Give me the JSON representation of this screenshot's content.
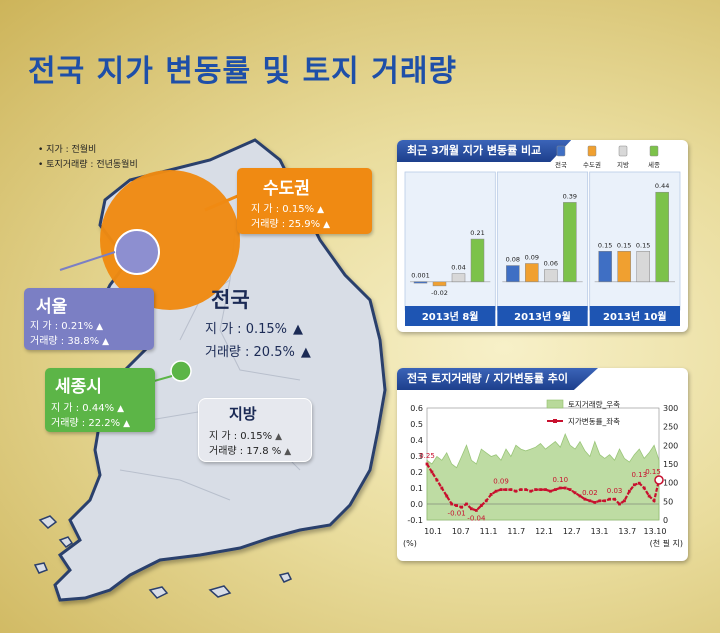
{
  "title": "전국 지가 변동률 및 토지 거래량",
  "notes": [
    "• 지가 : 전월비",
    "• 토지거래량 : 전년동월비"
  ],
  "regions": {
    "capital": {
      "name": "수도권",
      "line1": "지   가 : 0.15%",
      "line2": "거래량 : 25.9%",
      "color": "#f08a12"
    },
    "seoul": {
      "name": "서울",
      "line1": "지   가 : 0.21%",
      "line2": "거래량 : 38.8%",
      "color": "#7b7fc4"
    },
    "sejong": {
      "name": "세종시",
      "line1": "지   가 : 0.44%",
      "line2": "거래량 : 22.2%",
      "color": "#5cb547"
    },
    "local": {
      "name": "지방",
      "line1": "지   가 : 0.15%",
      "line2": "거래량 : 17.8 %"
    },
    "national": {
      "name": "전국",
      "line1": "지   가 : 0.15%",
      "line2": "거래량 : 20.5%"
    }
  },
  "arrow_glyph": "▲",
  "chart_data": [
    {
      "type": "bar",
      "title": "최근 3개월 지가 변동률 비교",
      "series_names": [
        "전국",
        "수도권",
        "지방",
        "세종"
      ],
      "colors": [
        "#3f6fc4",
        "#f0a030",
        "#d8d8d8",
        "#7cc24a"
      ],
      "categories": [
        "2013년 8월",
        "2013년 9월",
        "2013년 10월"
      ],
      "values": [
        [
          0.001,
          -0.02,
          0.04,
          0.21
        ],
        [
          0.08,
          0.09,
          0.06,
          0.39
        ],
        [
          0.15,
          0.15,
          0.15,
          0.44
        ]
      ],
      "labels": [
        [
          "0.001",
          "-0.02",
          "0.04",
          "0.21"
        ],
        [
          "0.08",
          "0.09",
          "0.06",
          "0.39"
        ],
        [
          "0.15",
          "0.15",
          "0.15",
          "0.44"
        ]
      ],
      "ylim": [
        -0.05,
        0.5
      ]
    },
    {
      "type": "line",
      "title": "전국 토지거래량 / 지가변동률 추이",
      "legend": [
        "토지거래량_우축",
        "지가변동률_좌축"
      ],
      "x_ticks": [
        "10.1",
        "10.7",
        "11.1",
        "11.7",
        "12.1",
        "12.7",
        "13.1",
        "13.7",
        "13.10"
      ],
      "left_axis": {
        "ticks": [
          "0.6",
          "0.5",
          "0.4",
          "0.3",
          "0.2",
          "0.1",
          "0.0",
          "-0.1"
        ],
        "ylim": [
          -0.1,
          0.6
        ],
        "unit": "(%)"
      },
      "right_axis": {
        "ticks": [
          "300",
          "250",
          "200",
          "150",
          "100",
          "50",
          "0"
        ],
        "ylim": [
          0,
          300
        ],
        "unit": "(천 필 지)"
      },
      "volume": [
        160,
        150,
        170,
        160,
        180,
        150,
        140,
        170,
        200,
        160,
        150,
        190,
        180,
        170,
        175,
        160,
        190,
        170,
        200,
        190,
        185,
        190,
        195,
        205,
        190,
        200,
        210,
        195,
        230,
        200,
        190,
        210,
        185,
        170,
        210,
        175,
        165,
        175,
        160,
        190,
        165,
        155,
        175,
        190,
        165,
        180,
        200,
        160
      ],
      "rate": [
        0.25,
        0.2,
        0.15,
        0.1,
        0.05,
        0.0,
        -0.01,
        -0.02,
        0.0,
        -0.03,
        -0.04,
        -0.01,
        0.02,
        0.06,
        0.08,
        0.09,
        0.09,
        0.09,
        0.08,
        0.09,
        0.09,
        0.08,
        0.09,
        0.09,
        0.09,
        0.08,
        0.09,
        0.1,
        0.1,
        0.09,
        0.07,
        0.05,
        0.03,
        0.02,
        0.01,
        0.02,
        0.02,
        0.03,
        0.03,
        0.0,
        0.02,
        0.08,
        0.12,
        0.13,
        0.1,
        0.05,
        0.02,
        0.15
      ],
      "annotations": [
        {
          "i": 0,
          "label": "0.25"
        },
        {
          "i": 6,
          "label": "-0.01"
        },
        {
          "i": 10,
          "label": "-0.04"
        },
        {
          "i": 15,
          "label": "0.09"
        },
        {
          "i": 27,
          "label": "0.10"
        },
        {
          "i": 33,
          "label": "0.02"
        },
        {
          "i": 38,
          "label": "0.03"
        },
        {
          "i": 43,
          "label": "0.13"
        },
        {
          "i": 47,
          "label": "0.15"
        }
      ]
    }
  ]
}
